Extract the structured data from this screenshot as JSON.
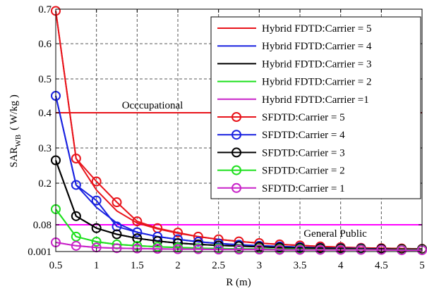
{
  "chart_data": {
    "type": "line",
    "xlabel": "R (m)",
    "ylabel_main": "SAR",
    "ylabel_sub": "WB",
    "ylabel_unit": "( W/kg )",
    "xlim": [
      0.5,
      5
    ],
    "ylim": [
      0.001,
      0.7
    ],
    "y_ticks": [
      0.001,
      0.08,
      0.2,
      0.3,
      0.4,
      0.5,
      0.6,
      0.7
    ],
    "y_tick_labels": [
      "0.001",
      "0.08",
      "0.2",
      "0.3",
      "0.4",
      "0.5",
      "0.6",
      "0.7"
    ],
    "x_ticks": [
      0.5,
      1,
      1.5,
      2,
      2.5,
      3,
      3.5,
      4,
      4.5,
      5
    ],
    "x_tick_labels": [
      "0.5",
      "1",
      "1.5",
      "2",
      "2.5",
      "3",
      "3.5",
      "4",
      "4.5",
      "5"
    ],
    "grid": true,
    "legend_position": "top-right",
    "x": [
      0.5,
      0.75,
      1.0,
      1.25,
      1.5,
      1.75,
      2.0,
      2.25,
      2.5,
      2.75,
      3.0,
      3.25,
      3.5,
      3.75,
      4.0,
      4.25,
      4.5,
      4.75,
      5.0
    ],
    "series": [
      {
        "name": "Hybrid FDTD:Carrier = 5",
        "color": "#e8141b",
        "marker": "none",
        "values": [
          0.695,
          0.27,
          0.18,
          0.12,
          0.085,
          0.068,
          0.055,
          0.045,
          0.037,
          0.031,
          0.026,
          0.022,
          0.019,
          0.016,
          0.014,
          0.012,
          0.011,
          0.01,
          0.009
        ]
      },
      {
        "name": "Hybrid FDTD:Carrier = 4",
        "color": "#1a22e0",
        "marker": "none",
        "values": [
          0.45,
          0.195,
          0.13,
          0.085,
          0.058,
          0.045,
          0.037,
          0.03,
          0.025,
          0.021,
          0.018,
          0.016,
          0.014,
          0.012,
          0.011,
          0.01,
          0.009,
          0.008,
          0.008
        ]
      },
      {
        "name": "Hybrid FDTD:Carrier = 3",
        "color": "#000000",
        "marker": "none",
        "values": [
          0.265,
          0.105,
          0.07,
          0.052,
          0.04,
          0.032,
          0.026,
          0.022,
          0.019,
          0.017,
          0.015,
          0.013,
          0.012,
          0.011,
          0.01,
          0.009,
          0.009,
          0.008,
          0.008
        ]
      },
      {
        "name": "Hybrid FDTD:Carrier = 2",
        "color": "#1ee01e",
        "marker": "none",
        "values": [
          0.125,
          0.045,
          0.03,
          0.022,
          0.018,
          0.015,
          0.013,
          0.011,
          0.01,
          0.009,
          0.009,
          0.008,
          0.008,
          0.007,
          0.007,
          0.007,
          0.006,
          0.006,
          0.006
        ]
      },
      {
        "name": "Hybrid FDTD:Carrier =1",
        "color": "#c822c8",
        "marker": "none",
        "values": [
          0.028,
          0.018,
          0.013,
          0.011,
          0.01,
          0.009,
          0.008,
          0.008,
          0.007,
          0.007,
          0.007,
          0.006,
          0.006,
          0.006,
          0.006,
          0.006,
          0.006,
          0.005,
          0.005
        ]
      },
      {
        "name": "SFDTD:Carrier = 5",
        "color": "#e8141b",
        "marker": "circle",
        "values": [
          0.695,
          0.27,
          0.205,
          0.145,
          0.09,
          0.07,
          0.057,
          0.045,
          0.037,
          0.031,
          0.026,
          0.022,
          0.019,
          0.016,
          0.014,
          0.012,
          0.011,
          0.01,
          0.009
        ]
      },
      {
        "name": "SFDTD:Carrier = 4",
        "color": "#1a22e0",
        "marker": "circle",
        "values": [
          0.45,
          0.195,
          0.15,
          0.075,
          0.058,
          0.045,
          0.037,
          0.03,
          0.025,
          0.021,
          0.018,
          0.016,
          0.014,
          0.012,
          0.011,
          0.01,
          0.009,
          0.008,
          0.008
        ]
      },
      {
        "name": "SFDTD:Carrier = 3",
        "color": "#000000",
        "marker": "circle",
        "values": [
          0.265,
          0.105,
          0.07,
          0.052,
          0.04,
          0.032,
          0.026,
          0.022,
          0.019,
          0.017,
          0.015,
          0.013,
          0.012,
          0.011,
          0.01,
          0.009,
          0.009,
          0.008,
          0.008
        ]
      },
      {
        "name": "SFDTD:Carrier = 2",
        "color": "#1ee01e",
        "marker": "circle",
        "values": [
          0.125,
          0.045,
          0.03,
          0.022,
          0.018,
          0.015,
          0.013,
          0.011,
          0.01,
          0.009,
          0.009,
          0.008,
          0.008,
          0.007,
          0.007,
          0.007,
          0.006,
          0.006,
          0.006
        ]
      },
      {
        "name": "SFDTD:Carrier = 1",
        "color": "#c822c8",
        "marker": "circle",
        "values": [
          0.028,
          0.018,
          0.013,
          0.011,
          0.01,
          0.009,
          0.008,
          0.008,
          0.007,
          0.007,
          0.007,
          0.006,
          0.006,
          0.006,
          0.006,
          0.006,
          0.006,
          0.005,
          0.005
        ]
      }
    ],
    "reference_lines": [
      {
        "label": "Occcupational",
        "value": 0.4,
        "color": "#e8141b"
      },
      {
        "label": "General Public",
        "value": 0.08,
        "color": "#ff00ff"
      }
    ]
  }
}
